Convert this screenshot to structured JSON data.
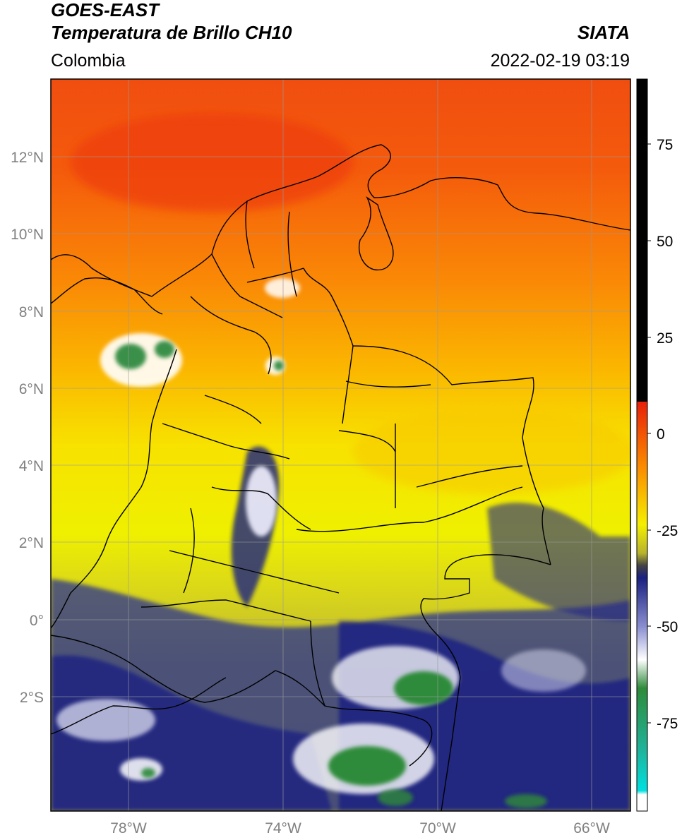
{
  "header": {
    "satellite": "GOES-EAST",
    "product": "Temperatura de Brillo CH10",
    "region": "Colombia",
    "agency": "SIATA",
    "timestamp": "2022-02-19 03:19"
  },
  "map": {
    "lat_range": [
      -4.7,
      14.2
    ],
    "lon_range": [
      -80.0,
      -65.0
    ],
    "lat_ticks": [
      "12°N",
      "10°N",
      "8°N",
      "6°N",
      "4°N",
      "2°N",
      "0°",
      "2°S"
    ],
    "lon_ticks": [
      "78°W",
      "74°W",
      "70°W",
      "66°W"
    ]
  },
  "colorbar": {
    "range": [
      -100,
      90
    ],
    "ticks": [
      "75",
      "50",
      "25",
      "0",
      "-25",
      "-50",
      "-75"
    ],
    "colors": {
      "black": "#000000",
      "red": "#e8200a",
      "orange": "#fb8c00",
      "yellow": "#f5ef00",
      "olive": "#c9c52a",
      "navy": "#1a2080",
      "white": "#ffffff",
      "green": "#2e8b3a",
      "teal": "#1fb39a",
      "cyan": "#00e0e0"
    }
  }
}
